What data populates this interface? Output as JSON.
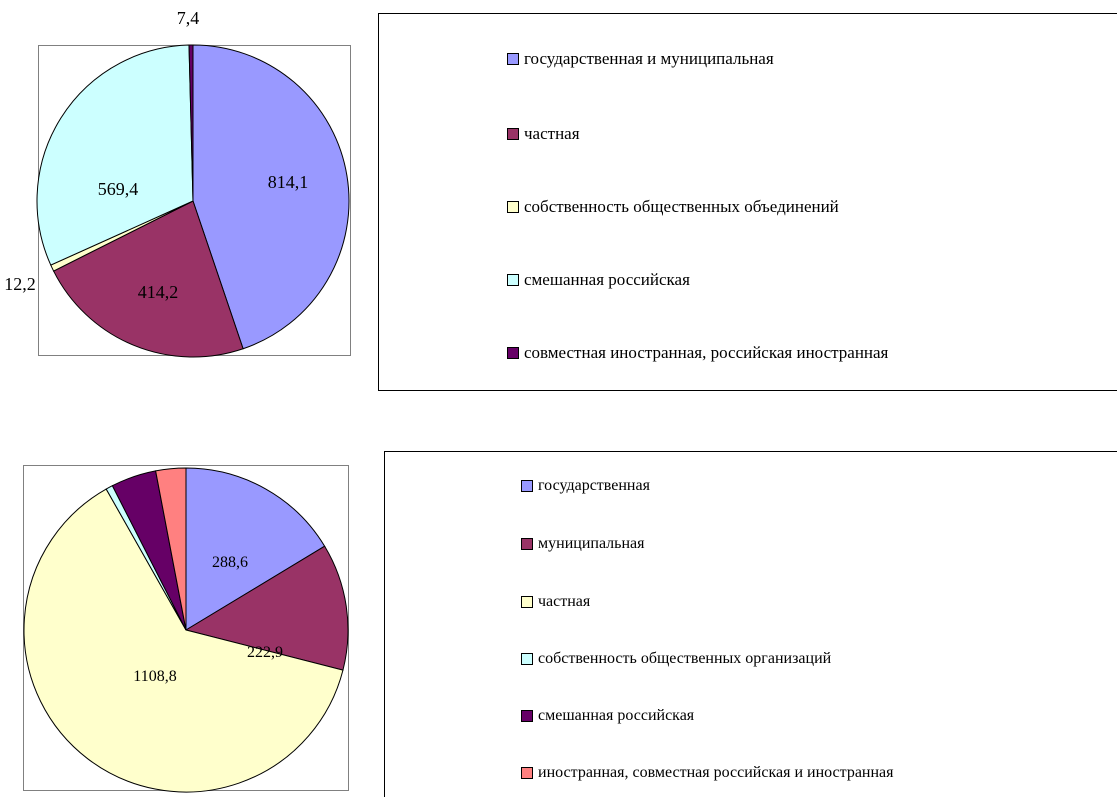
{
  "chart_data": [
    {
      "type": "pie",
      "categories": [
        "государственная и муниципальная",
        "частная",
        "собственность общественных объединений",
        "смешанная российская",
        "совместная иностранная, российская иностранная"
      ],
      "values": [
        814.1,
        414.2,
        12.2,
        569.4,
        7.4
      ],
      "data_labels": [
        "814,1",
        "414,2",
        "12,2",
        "569,4",
        "7,4"
      ],
      "colors": [
        "#9999ff",
        "#993366",
        "#ffffcc",
        "#ccffff",
        "#660066"
      ],
      "legend": "right"
    },
    {
      "type": "pie",
      "categories": [
        "государственная",
        "муниципальная",
        "частная",
        "собственность общественных организаций",
        "смешанная российская",
        "иностранная, совместная российская и иностранная"
      ],
      "values": [
        288.6,
        222.9,
        1108.8,
        12.2,
        79.5,
        53.0
      ],
      "data_labels": [
        "288,6",
        "222,9",
        "1108,8",
        "",
        "",
        ""
      ],
      "colors": [
        "#9999ff",
        "#993366",
        "#ffffcc",
        "#ccffff",
        "#660066",
        "#ff8080"
      ],
      "legend": "right"
    }
  ]
}
